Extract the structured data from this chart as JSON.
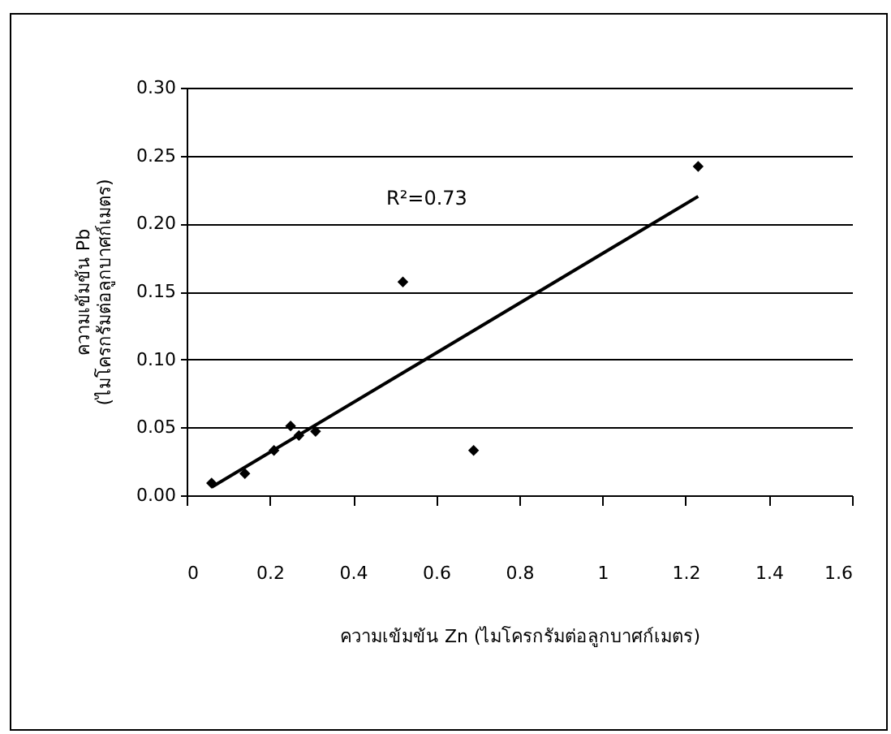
{
  "chart_data": {
    "type": "scatter",
    "xlabel": "ความเข้มข้น Zn (ไมโครกรัมต่อลูกบาศก์เมตร)",
    "ylabel": "ความเข้มข้น Pb (ไมโครกรัมต่อลูกบาศก์เมตร)",
    "annotations": [
      "R²=0.73"
    ],
    "xlim": [
      0,
      1.6
    ],
    "xticks": [
      0,
      0.2,
      0.4,
      0.6,
      0.8,
      1,
      1.2,
      1.4,
      1.6
    ],
    "ylim": [
      0,
      0.3
    ],
    "yticks": [
      {
        "value": 0,
        "label": "0.00"
      },
      {
        "value": 0.05,
        "label": "0.05"
      },
      {
        "value": 0.1,
        "label": "0.10"
      },
      {
        "value": 0.15,
        "label": "0.15"
      },
      {
        "value": 0.2,
        "label": "0.20"
      },
      {
        "value": 0.25,
        "label": "0.25"
      },
      {
        "value": 0.3,
        "label": "0.30"
      }
    ],
    "grid": "y",
    "marker": "diamond",
    "series": [
      {
        "type": "scatter",
        "color": "#000000",
        "x": [
          0.06,
          0.14,
          0.21,
          0.25,
          0.27,
          0.31,
          0.52,
          0.69,
          1.23
        ],
        "values": [
          0.009,
          0.016,
          0.033,
          0.051,
          0.044,
          0.047,
          0.157,
          0.033,
          0.242
        ]
      },
      {
        "type": "line",
        "color": "#000000",
        "marker": "none",
        "line_style": "solid",
        "x": [
          0.06,
          1.23
        ],
        "values": [
          0.006,
          0.22
        ]
      }
    ]
  }
}
